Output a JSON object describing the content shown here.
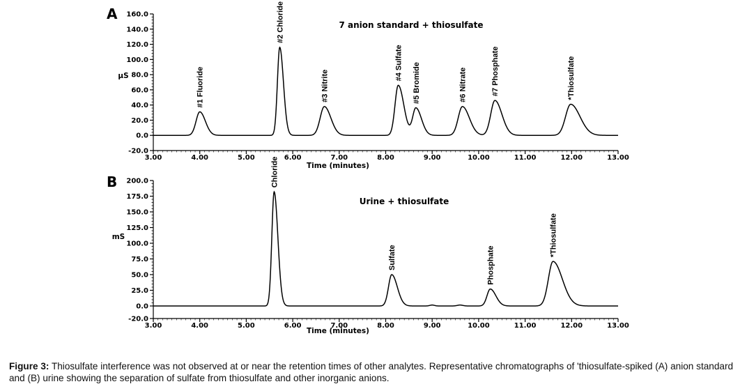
{
  "chart_data": [
    {
      "type": "line",
      "panel_label": "A",
      "title": "7 anion standard + thiosulfate",
      "xlabel": "Time (minutes)",
      "ylabel": "µS",
      "xlim": [
        3.0,
        13.0
      ],
      "ylim": [
        -20.0,
        160.0
      ],
      "x_ticks": [
        "3.00",
        "4.00",
        "5.00",
        "6.00",
        "7.00",
        "8.00",
        "9.00",
        "10.00",
        "11.00",
        "12.00",
        "13.00"
      ],
      "y_ticks": [
        "160.0",
        "140.0",
        "120.0",
        "100.0",
        "80.0",
        "60.0",
        "40.0",
        "20.0",
        "0.0",
        "-20.0"
      ],
      "grid": false,
      "baseline": 0.0,
      "peaks": [
        {
          "label": "#1 Fluoride",
          "x": 4.0,
          "y": 31,
          "width": 0.08,
          "tail": 0.12
        },
        {
          "label": "#2 Chloride",
          "x": 5.72,
          "y": 116,
          "width": 0.05,
          "tail": 0.08
        },
        {
          "label": "#3 Nitrite",
          "x": 6.68,
          "y": 38,
          "width": 0.09,
          "tail": 0.14
        },
        {
          "label": "#4 Sulfate",
          "x": 8.27,
          "y": 66,
          "width": 0.07,
          "tail": 0.12
        },
        {
          "label": "#5 Bromide",
          "x": 8.65,
          "y": 36,
          "width": 0.07,
          "tail": 0.12
        },
        {
          "label": "#6 Nitrate",
          "x": 9.65,
          "y": 38,
          "width": 0.09,
          "tail": 0.15
        },
        {
          "label": "#7 Phosphate",
          "x": 10.35,
          "y": 46,
          "width": 0.09,
          "tail": 0.15
        },
        {
          "label": "*Thiosulfate",
          "x": 11.98,
          "y": 41,
          "width": 0.11,
          "tail": 0.2
        }
      ]
    },
    {
      "type": "line",
      "panel_label": "B",
      "title": "Urine + thiosulfate",
      "xlabel": "Time (minutes)",
      "ylabel": "mS",
      "xlim": [
        3.0,
        13.0
      ],
      "ylim": [
        -20.0,
        200.0
      ],
      "x_ticks": [
        "3.00",
        "4.00",
        "5.00",
        "6.00",
        "7.00",
        "8.00",
        "9.00",
        "10.00",
        "11.00",
        "12.00",
        "13.00"
      ],
      "y_ticks": [
        "200.0",
        "175.0",
        "150.0",
        "125.0",
        "100.0",
        "75.0",
        "50.0",
        "25.0",
        "0.0",
        "-20.0"
      ],
      "grid": false,
      "baseline": 0.0,
      "peaks": [
        {
          "label": "Chloride",
          "x": 5.6,
          "y": 182,
          "width": 0.05,
          "tail": 0.08
        },
        {
          "label": "Sulfate",
          "x": 8.13,
          "y": 50,
          "width": 0.07,
          "tail": 0.12
        },
        {
          "label": "",
          "x": 9.0,
          "y": 1.5,
          "width": 0.05,
          "tail": 0.05
        },
        {
          "label": "",
          "x": 9.6,
          "y": 1.5,
          "width": 0.06,
          "tail": 0.06
        },
        {
          "label": "Phosphate",
          "x": 10.25,
          "y": 27,
          "width": 0.07,
          "tail": 0.12
        },
        {
          "label": "*Thiosulfate",
          "x": 11.6,
          "y": 71,
          "width": 0.1,
          "tail": 0.2
        }
      ]
    }
  ],
  "caption": {
    "label": "Figure 3:",
    "text": "Thiosulfate interference was not observed at or near the retention times of other analytes. Representative chromatographs of ʹthiosulfate-spiked (A) anion standard and (B) urine showing the separation of sulfate from thiosulfate and other inorganic anions."
  }
}
